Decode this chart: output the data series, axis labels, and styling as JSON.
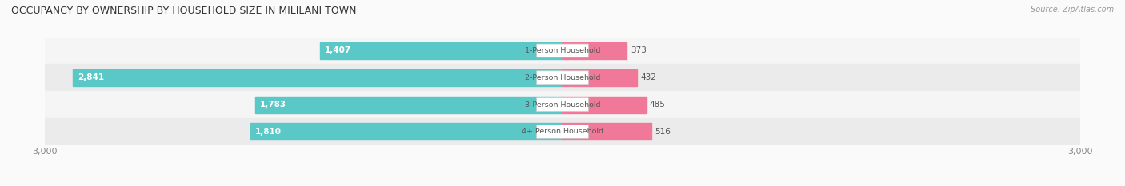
{
  "title": "OCCUPANCY BY OWNERSHIP BY HOUSEHOLD SIZE IN MILILANI TOWN",
  "source": "Source: ZipAtlas.com",
  "categories": [
    "1-Person Household",
    "2-Person Household",
    "3-Person Household",
    "4+ Person Household"
  ],
  "owner_values": [
    1407,
    2841,
    1783,
    1810
  ],
  "renter_values": [
    373,
    432,
    485,
    516
  ],
  "max_scale": 3000,
  "owner_color": "#5BC8C8",
  "renter_color": "#F07899",
  "row_bg_colors": [
    "#F5F5F5",
    "#EBEBEB",
    "#F5F5F5",
    "#EBEBEB"
  ],
  "label_color": "#555555",
  "title_color": "#333333",
  "axis_label_color": "#888888",
  "figsize": [
    14.06,
    2.33
  ],
  "dpi": 100
}
